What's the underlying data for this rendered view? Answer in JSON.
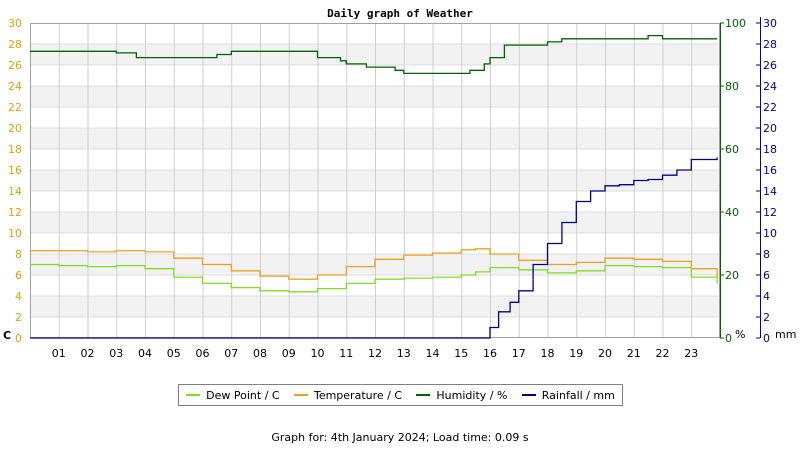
{
  "footer": {
    "text": "Graph for: 4th January 2024; Load time: 0.09 s"
  },
  "chart_data": {
    "type": "line",
    "title": "Daily graph of Weather",
    "x_tick_labels": [
      "01",
      "02",
      "03",
      "04",
      "05",
      "06",
      "07",
      "08",
      "09",
      "10",
      "11",
      "12",
      "13",
      "14",
      "15",
      "16",
      "17",
      "18",
      "19",
      "20",
      "21",
      "22",
      "23"
    ],
    "x_range": [
      0,
      24
    ],
    "axes": {
      "left": {
        "label": "C",
        "range": [
          0,
          30
        ],
        "step": 2,
        "color": "#e6a000"
      },
      "right1": {
        "label": "%",
        "range": [
          0,
          100
        ],
        "step": 20,
        "color": "#006400"
      },
      "right2": {
        "label": "mm",
        "range": [
          0,
          30
        ],
        "step": 2,
        "color": "#0000a0"
      }
    },
    "grid": true,
    "legend_position": "bottom",
    "series": [
      {
        "name": "Dew Point / C",
        "axis": "left",
        "color": "#80e020",
        "x": [
          0,
          1,
          2,
          3,
          4,
          5,
          6,
          7,
          8,
          9,
          10,
          11,
          12,
          13,
          14,
          15,
          15.5,
          16,
          17,
          18,
          19,
          20,
          21,
          22,
          23,
          23.9
        ],
        "y": [
          7.0,
          6.9,
          6.8,
          6.9,
          6.6,
          5.8,
          5.2,
          4.8,
          4.5,
          4.4,
          4.7,
          5.2,
          5.6,
          5.7,
          5.8,
          6.0,
          6.3,
          6.7,
          6.5,
          6.2,
          6.4,
          6.9,
          6.8,
          6.7,
          5.8,
          5.2
        ]
      },
      {
        "name": "Temperature / C",
        "axis": "left",
        "color": "#f0a020",
        "x": [
          0,
          1,
          2,
          3,
          4,
          5,
          6,
          7,
          8,
          9,
          10,
          11,
          12,
          13,
          14,
          15,
          15.5,
          16,
          17,
          18,
          19,
          20,
          21,
          22,
          23,
          23.9
        ],
        "y": [
          8.3,
          8.3,
          8.2,
          8.3,
          8.2,
          7.6,
          7.0,
          6.4,
          5.9,
          5.6,
          6.0,
          6.8,
          7.5,
          7.9,
          8.1,
          8.4,
          8.5,
          8.0,
          7.4,
          7.0,
          7.2,
          7.6,
          7.5,
          7.3,
          6.6,
          5.8
        ]
      },
      {
        "name": "Humidity / %",
        "axis": "right1",
        "color": "#006400",
        "x": [
          0,
          1,
          2,
          3,
          3.7,
          4.4,
          5,
          5.8,
          6.5,
          7,
          8,
          9,
          10,
          10.8,
          11,
          11.7,
          12,
          12.7,
          13,
          14,
          15,
          15.3,
          15.8,
          16,
          16.5,
          17,
          18,
          18.5,
          19,
          20,
          21,
          21.5,
          22,
          23,
          23.9
        ],
        "y": [
          91,
          91,
          91,
          90.5,
          89,
          89,
          89,
          89,
          90,
          91,
          91,
          91,
          89,
          88,
          87,
          86,
          86,
          85,
          84,
          84,
          84,
          85,
          87,
          89,
          93,
          93,
          94,
          95,
          95,
          95,
          95,
          96,
          95,
          95,
          95
        ]
      },
      {
        "name": "Rainfall / mm",
        "axis": "right2",
        "color": "#0000a0",
        "x": [
          0,
          15.7,
          16,
          16.3,
          16.7,
          17,
          17.5,
          18,
          18.5,
          19,
          19.5,
          20,
          20.5,
          21,
          21.5,
          22,
          22.5,
          23,
          23.9
        ],
        "y": [
          0,
          0,
          1.0,
          2.5,
          3.4,
          4.5,
          7.0,
          9.0,
          11.0,
          13.0,
          14.0,
          14.5,
          14.6,
          15.0,
          15.1,
          15.5,
          16.0,
          17.0,
          17.2
        ]
      }
    ]
  }
}
